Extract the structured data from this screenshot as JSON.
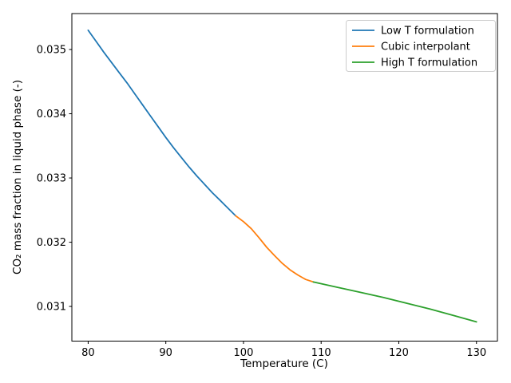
{
  "figure": {
    "background": "#ffffff",
    "spine_color": "#000000",
    "legend_border_color": "#cccccc"
  },
  "chart_data": {
    "type": "line",
    "title": "",
    "xlabel": "Temperature (C)",
    "ylabel": "CO₂ mass fraction in liquid phase (-)",
    "xlim": [
      77.9,
      132.7
    ],
    "ylim": [
      0.03046,
      0.03556
    ],
    "x_ticks": [
      80,
      90,
      100,
      110,
      120,
      130
    ],
    "x_tick_labels": [
      "80",
      "90",
      "100",
      "110",
      "120",
      "130"
    ],
    "y_ticks": [
      0.031,
      0.032,
      0.033,
      0.034,
      0.035
    ],
    "y_tick_labels": [
      "0.031",
      "0.032",
      "0.033",
      "0.034",
      "0.035"
    ],
    "grid": false,
    "legend_position": "upper right",
    "series": [
      {
        "name": "Low T formulation",
        "color": "#1f77b4",
        "points": [
          [
            80,
            0.0353
          ],
          [
            81,
            0.03513
          ],
          [
            82,
            0.03496
          ],
          [
            83,
            0.0348
          ],
          [
            84,
            0.03464
          ],
          [
            85,
            0.03448
          ],
          [
            86,
            0.03431
          ],
          [
            87,
            0.03414
          ],
          [
            88,
            0.03397
          ],
          [
            89,
            0.0338
          ],
          [
            90,
            0.03363
          ],
          [
            91,
            0.03347
          ],
          [
            92,
            0.03332
          ],
          [
            93,
            0.03317
          ],
          [
            94,
            0.03303
          ],
          [
            95,
            0.0329
          ],
          [
            96,
            0.03277
          ],
          [
            97,
            0.03265
          ],
          [
            98,
            0.03253
          ],
          [
            99,
            0.03241
          ]
        ]
      },
      {
        "name": "Cubic interpolant",
        "color": "#ff7f0e",
        "points": [
          [
            99,
            0.03241
          ],
          [
            100,
            0.03232
          ],
          [
            101,
            0.03221
          ],
          [
            102,
            0.03207
          ],
          [
            103,
            0.03192
          ],
          [
            104,
            0.03179
          ],
          [
            105,
            0.03167
          ],
          [
            106,
            0.03157
          ],
          [
            107,
            0.03149
          ],
          [
            108,
            0.03142
          ],
          [
            109,
            0.03138
          ]
        ]
      },
      {
        "name": "High T formulation",
        "color": "#2ca02c",
        "points": [
          [
            109,
            0.03138
          ],
          [
            112,
            0.0313
          ],
          [
            115,
            0.03122
          ],
          [
            118,
            0.03114
          ],
          [
            121,
            0.03105
          ],
          [
            124,
            0.03096
          ],
          [
            127,
            0.03086
          ],
          [
            130,
            0.03076
          ]
        ]
      }
    ]
  }
}
